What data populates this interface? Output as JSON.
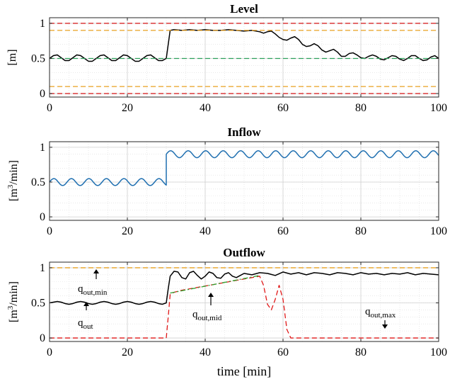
{
  "chart_data": [
    {
      "type": "line",
      "title": "Level",
      "xlabel": "",
      "ylabel": "[m]",
      "xlim": [
        0,
        100
      ],
      "ylim": [
        -0.05,
        1.08
      ],
      "xticks": [
        "0",
        "20",
        "40",
        "60",
        "80",
        "100"
      ],
      "yticks": [
        "0",
        "0.5",
        "1"
      ],
      "grid": true,
      "series": [
        {
          "style": "solid",
          "color": "#000000",
          "x": [
            0,
            1,
            2,
            3,
            4,
            5,
            6,
            7,
            8,
            9,
            10,
            11,
            12,
            13,
            14,
            15,
            16,
            17,
            18,
            19,
            20,
            21,
            22,
            23,
            24,
            25,
            26,
            27,
            28,
            29,
            30,
            30.5,
            31,
            32,
            34,
            36,
            38,
            40,
            42,
            44,
            46,
            48,
            50,
            52,
            54,
            55,
            56,
            57,
            58,
            59,
            60,
            61,
            62,
            63,
            64,
            65,
            66,
            67,
            68,
            69,
            70,
            71,
            72,
            73,
            74,
            75,
            76,
            77,
            78,
            79,
            80,
            81,
            82,
            83,
            84,
            85,
            86,
            87,
            88,
            89,
            90,
            91,
            92,
            93,
            94,
            95,
            96,
            97,
            98,
            99,
            100
          ],
          "y": [
            0.5,
            0.54,
            0.55,
            0.51,
            0.47,
            0.47,
            0.51,
            0.55,
            0.54,
            0.5,
            0.46,
            0.46,
            0.5,
            0.54,
            0.55,
            0.51,
            0.47,
            0.47,
            0.51,
            0.55,
            0.54,
            0.5,
            0.46,
            0.46,
            0.5,
            0.54,
            0.55,
            0.51,
            0.47,
            0.47,
            0.5,
            0.7,
            0.9,
            0.91,
            0.9,
            0.91,
            0.9,
            0.91,
            0.9,
            0.9,
            0.91,
            0.9,
            0.89,
            0.9,
            0.88,
            0.86,
            0.88,
            0.89,
            0.85,
            0.8,
            0.77,
            0.76,
            0.79,
            0.81,
            0.77,
            0.7,
            0.67,
            0.68,
            0.71,
            0.68,
            0.62,
            0.59,
            0.61,
            0.63,
            0.59,
            0.53,
            0.53,
            0.57,
            0.58,
            0.55,
            0.51,
            0.5,
            0.53,
            0.55,
            0.53,
            0.49,
            0.48,
            0.51,
            0.54,
            0.53,
            0.49,
            0.47,
            0.5,
            0.54,
            0.54,
            0.5,
            0.47,
            0.48,
            0.52,
            0.54,
            0.5
          ]
        },
        {
          "style": "dashed",
          "color": "#d62728",
          "x": [
            0,
            100
          ],
          "y": [
            1.0,
            1.0
          ]
        },
        {
          "style": "dashed",
          "color": "#e8a020",
          "x": [
            0,
            100
          ],
          "y": [
            0.9,
            0.9
          ]
        },
        {
          "style": "dashed",
          "color": "#2ca05a",
          "x": [
            0,
            100
          ],
          "y": [
            0.5,
            0.5
          ]
        },
        {
          "style": "dashed",
          "color": "#e8a020",
          "x": [
            0,
            100
          ],
          "y": [
            0.1,
            0.1
          ]
        },
        {
          "style": "dashed",
          "color": "#d62728",
          "x": [
            0,
            100
          ],
          "y": [
            0.0,
            0.0
          ]
        }
      ]
    },
    {
      "type": "line",
      "title": "Inflow",
      "xlabel": "",
      "ylabel": "[m³/min]",
      "xlim": [
        0,
        100
      ],
      "ylim": [
        -0.05,
        1.08
      ],
      "xticks": [
        "0",
        "20",
        "40",
        "60",
        "80",
        "100"
      ],
      "yticks": [
        "0",
        "0.5",
        "1"
      ],
      "grid": true,
      "series": [
        {
          "style": "solid",
          "color": "#1f6fb0",
          "wave": {
            "segments": [
              {
                "x0": 0,
                "x1": 30,
                "mean": 0.5,
                "amp": 0.05,
                "period": 4.5
              },
              {
                "x0": 30,
                "x1": 100,
                "mean": 0.9,
                "amp": 0.05,
                "period": 4.5
              }
            ]
          }
        }
      ]
    },
    {
      "type": "line",
      "title": "Outflow",
      "xlabel": "time [min]",
      "ylabel": "[m³/min]",
      "xlim": [
        0,
        100
      ],
      "ylim": [
        -0.05,
        1.08
      ],
      "xticks": [
        "0",
        "20",
        "40",
        "60",
        "80",
        "100"
      ],
      "yticks": [
        "0",
        "0.5",
        "1"
      ],
      "grid": true,
      "series": [
        {
          "style": "solid",
          "color": "#000000",
          "x": [
            0,
            1,
            2,
            3,
            4,
            5,
            6,
            7,
            8,
            9,
            10,
            11,
            12,
            13,
            14,
            15,
            16,
            17,
            18,
            19,
            20,
            21,
            22,
            23,
            24,
            25,
            26,
            27,
            28,
            29,
            30,
            30.5,
            31,
            32,
            33,
            34,
            35,
            36,
            37,
            38,
            39,
            40,
            41,
            42,
            43,
            44,
            45,
            46,
            47,
            48,
            49,
            50,
            52,
            54,
            56,
            58,
            60,
            62,
            64,
            66,
            68,
            70,
            72,
            74,
            76,
            78,
            80,
            82,
            84,
            86,
            88,
            90,
            92,
            94,
            96,
            98,
            100
          ],
          "y": [
            0.5,
            0.51,
            0.52,
            0.51,
            0.49,
            0.48,
            0.49,
            0.51,
            0.52,
            0.51,
            0.49,
            0.48,
            0.49,
            0.51,
            0.52,
            0.51,
            0.49,
            0.48,
            0.49,
            0.51,
            0.52,
            0.51,
            0.49,
            0.48,
            0.49,
            0.51,
            0.52,
            0.51,
            0.49,
            0.48,
            0.5,
            0.7,
            0.88,
            0.95,
            0.94,
            0.86,
            0.84,
            0.93,
            0.95,
            0.89,
            0.84,
            0.88,
            0.94,
            0.92,
            0.86,
            0.85,
            0.91,
            0.93,
            0.88,
            0.86,
            0.89,
            0.92,
            0.9,
            0.93,
            0.92,
            0.89,
            0.94,
            0.91,
            0.93,
            0.9,
            0.93,
            0.92,
            0.9,
            0.93,
            0.92,
            0.9,
            0.93,
            0.91,
            0.92,
            0.9,
            0.92,
            0.91,
            0.93,
            0.9,
            0.92,
            0.91,
            0.9
          ]
        },
        {
          "style": "dashed",
          "color": "#e8a020",
          "x": [
            0,
            100
          ],
          "y": [
            1.0,
            1.0
          ]
        },
        {
          "style": "dashed",
          "color": "#e01818",
          "x": [
            0,
            30,
            30.5,
            31,
            32,
            34,
            36,
            38,
            40,
            42,
            44,
            46,
            48,
            50,
            52,
            54,
            55,
            56,
            57,
            58,
            59,
            60,
            61,
            62,
            100
          ],
          "y": [
            0,
            0,
            0.3,
            0.62,
            0.65,
            0.68,
            0.7,
            0.72,
            0.74,
            0.76,
            0.78,
            0.8,
            0.82,
            0.84,
            0.86,
            0.88,
            0.75,
            0.48,
            0.4,
            0.55,
            0.75,
            0.55,
            0.12,
            0,
            0
          ]
        },
        {
          "style": "dashdot",
          "color": "#2ca02c",
          "x": [
            31,
            54
          ],
          "y": [
            0.64,
            0.89
          ]
        }
      ],
      "annotations": [
        {
          "base": "q",
          "sub": "out,min"
        },
        {
          "base": "q",
          "sub": "out"
        },
        {
          "base": "q",
          "sub": "out,mid"
        },
        {
          "base": "q",
          "sub": "out,max"
        }
      ]
    }
  ]
}
